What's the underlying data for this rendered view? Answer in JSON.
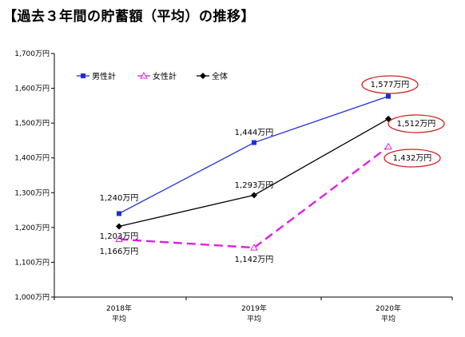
{
  "title": "【過去３年間の貯蓄額（平均）の推移】",
  "chart_data": {
    "type": "line",
    "categories": [
      [
        "2018年",
        "平均"
      ],
      [
        "2019年",
        "平均"
      ],
      [
        "2020年",
        "平均"
      ]
    ],
    "y_ticks": [
      "1,000万円",
      "1,100万円",
      "1,200万円",
      "1,300万円",
      "1,400万円",
      "1,500万円",
      "1,600万円",
      "1,700万円"
    ],
    "ylim": [
      1000,
      1700
    ],
    "grid": false,
    "legend_position": "top-left",
    "series": [
      {
        "name": "男性計",
        "color": "#1f2fd6",
        "marker": "square",
        "dash": false,
        "values": [
          1240,
          1444,
          1577
        ],
        "labels": [
          "1,240万円",
          "1,444万円",
          "1,577万円"
        ],
        "circled": [
          false,
          false,
          true
        ]
      },
      {
        "name": "女性計",
        "color": "#e020e0",
        "marker": "triangle-open",
        "dash": true,
        "values": [
          1166,
          1142,
          1432
        ],
        "labels": [
          "1,166万円",
          "1,142万円",
          "1,432万円"
        ],
        "circled": [
          false,
          false,
          true
        ]
      },
      {
        "name": "全体",
        "color": "#000000",
        "marker": "diamond",
        "dash": false,
        "values": [
          1203,
          1293,
          1512
        ],
        "labels": [
          "1,203万円",
          "1,293万円",
          "1,512万円"
        ],
        "circled": [
          false,
          false,
          true
        ]
      }
    ],
    "highlight_color": "#d42020"
  }
}
